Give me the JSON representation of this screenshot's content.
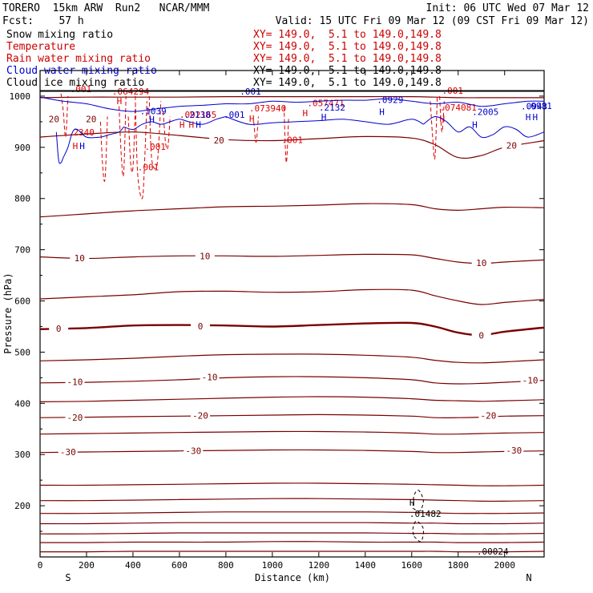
{
  "header": {
    "line1_left": "TORERO  15km ARW  Run2   NCAR/MMM",
    "line1_right": "Init: 06 UTC Wed 07 Mar 12",
    "line2_left": "Fcst:    57 h",
    "line2_right": "Valid: 15 UTC Fri 09 Mar 12 (09 CST Fri 09 Mar 12)"
  },
  "legend": [
    {
      "label": "Snow mixing ratio",
      "xy": "XY= 149.0,  5.1 to 149.0,149.8",
      "color": "#000000"
    },
    {
      "label": "Temperature",
      "xy": "XY= 149.0,  5.1 to 149.0,149.8",
      "color": "#cc0000"
    },
    {
      "label": "Rain water mixing ratio",
      "xy": "XY= 149.0,  5.1 to 149.0,149.8",
      "color": "#cc0000"
    },
    {
      "label": "Cloud water mixing ratio",
      "xy": "XY= 149.0,  5.1 to 149.0,149.8",
      "color": "#0000cc"
    },
    {
      "label": "Cloud ice mixing ratio",
      "xy": "XY= 149.0,  5.1 to 149.0,149.8",
      "color": "#000000"
    }
  ],
  "colors": {
    "temperature": "#7a0000",
    "rain": "#dd0000",
    "cloud_water": "#0000cc",
    "ice": "#000000",
    "axis": "#000000"
  },
  "chart_data": {
    "type": "line",
    "xlabel": "Distance (km)",
    "ylabel": "Pressure (hPa)",
    "xlim": [
      0,
      2170
    ],
    "ylim": [
      1050,
      100
    ],
    "x_ticks": [
      0,
      200,
      400,
      600,
      800,
      1000,
      1200,
      1400,
      1600,
      1800,
      2000
    ],
    "y_ticks": [
      200,
      300,
      400,
      500,
      600,
      700,
      800,
      900,
      1000
    ],
    "x_end_labels": {
      "left": "S",
      "right": "N"
    },
    "isotherm_x": [
      0,
      200,
      400,
      600,
      800,
      1000,
      1200,
      1400,
      1600,
      1700,
      1800,
      1900,
      2000,
      2170
    ],
    "isotherms": [
      {
        "label": "",
        "p": [
          110,
          110,
          111,
          111,
          111,
          111,
          111,
          111,
          111,
          111,
          110,
          110,
          110,
          111
        ]
      },
      {
        "label": "",
        "p": [
          128,
          128,
          129,
          129,
          129,
          130,
          130,
          129,
          129,
          129,
          128,
          128,
          128,
          129
        ]
      },
      {
        "label": "",
        "p": [
          145,
          145,
          146,
          147,
          147,
          147,
          147,
          147,
          146,
          146,
          145,
          145,
          145,
          146
        ]
      },
      {
        "label": "",
        "p": [
          165,
          165,
          166,
          167,
          167,
          167,
          167,
          167,
          166,
          166,
          165,
          165,
          165,
          166
        ]
      },
      {
        "label": "",
        "p": [
          185,
          185,
          186,
          187,
          188,
          188,
          188,
          188,
          187,
          186,
          185,
          185,
          185,
          186
        ]
      },
      {
        "label": "",
        "p": [
          210,
          210,
          211,
          212,
          213,
          214,
          214,
          213,
          212,
          211,
          210,
          209,
          209,
          210
        ]
      },
      {
        "label": "",
        "p": [
          240,
          240,
          241,
          242,
          243,
          244,
          244,
          243,
          242,
          241,
          240,
          239,
          239,
          240
        ]
      },
      {
        "label": "-30",
        "p": [
          304,
          305,
          306,
          307,
          308,
          309,
          309,
          308,
          306,
          304,
          304,
          305,
          306,
          307
        ]
      },
      {
        "label": "",
        "p": [
          340,
          341,
          342,
          343,
          344,
          345,
          345,
          344,
          342,
          340,
          340,
          341,
          342,
          343
        ]
      },
      {
        "label": "-20",
        "p": [
          372,
          373,
          374,
          375,
          376,
          377,
          378,
          377,
          375,
          372,
          372,
          373,
          375,
          376
        ]
      },
      {
        "label": "",
        "p": [
          403,
          404,
          406,
          408,
          410,
          412,
          413,
          412,
          409,
          406,
          405,
          404,
          405,
          407
        ]
      },
      {
        "label": "-10",
        "p": [
          440,
          441,
          443,
          446,
          450,
          452,
          452,
          450,
          446,
          440,
          438,
          439,
          441,
          445
        ]
      },
      {
        "label": "",
        "p": [
          483,
          485,
          488,
          492,
          495,
          496,
          496,
          494,
          490,
          484,
          480,
          479,
          481,
          485
        ]
      },
      {
        "label": "0",
        "p": [
          545,
          547,
          552,
          553,
          552,
          550,
          553,
          556,
          557,
          550,
          538,
          533,
          540,
          548
        ]
      },
      {
        "label": "",
        "p": [
          604,
          608,
          612,
          618,
          619,
          617,
          618,
          622,
          621,
          610,
          600,
          593,
          597,
          603
        ]
      },
      {
        "label": "10",
        "p": [
          686,
          683,
          686,
          688,
          688,
          687,
          689,
          691,
          690,
          683,
          676,
          673,
          676,
          680
        ]
      },
      {
        "label": "",
        "p": [
          764,
          770,
          776,
          780,
          784,
          785,
          787,
          790,
          788,
          780,
          777,
          780,
          783,
          782
        ]
      },
      {
        "label": "20",
        "p": [
          920,
          926,
          930,
          923,
          915,
          913,
          917,
          921,
          918,
          905,
          880,
          884,
          900,
          913
        ]
      },
      {
        "label": "",
        "p": [
          997,
          998,
          998,
          998,
          999,
          999,
          999,
          999,
          999,
          998,
          997,
          997,
          997,
          997
        ]
      }
    ],
    "isotherm_labels": [
      {
        "text": "-30",
        "x": 120,
        "p": 305
      },
      {
        "text": "-30",
        "x": 660,
        "p": 307
      },
      {
        "text": "-30",
        "x": 2040,
        "p": 308
      },
      {
        "text": "-20",
        "x": 150,
        "p": 372
      },
      {
        "text": "-20",
        "x": 690,
        "p": 376
      },
      {
        "text": "-20",
        "x": 1930,
        "p": 376
      },
      {
        "text": "-10",
        "x": 150,
        "p": 442
      },
      {
        "text": "-10",
        "x": 730,
        "p": 451
      },
      {
        "text": "-10",
        "x": 2110,
        "p": 445
      },
      {
        "text": "0",
        "x": 80,
        "p": 546
      },
      {
        "text": "0",
        "x": 690,
        "p": 551
      },
      {
        "text": "0",
        "x": 1900,
        "p": 533
      },
      {
        "text": "10",
        "x": 170,
        "p": 684
      },
      {
        "text": "10",
        "x": 710,
        "p": 688
      },
      {
        "text": "10",
        "x": 1900,
        "p": 674
      },
      {
        "text": "20",
        "x": 770,
        "p": 914
      },
      {
        "text": "20",
        "x": 2030,
        "p": 904
      },
      {
        "text": "20",
        "x": 60,
        "p": 955
      },
      {
        "text": "20",
        "x": 220,
        "p": 955
      }
    ],
    "ice_contour": [
      {
        "x": 1610,
        "p": 140
      },
      {
        "x": 1640,
        "p": 130
      },
      {
        "x": 1650,
        "p": 155
      },
      {
        "x": 1620,
        "p": 170
      },
      {
        "x": 1605,
        "p": 155
      }
    ],
    "ice_contour_lower": [
      {
        "x": 1605,
        "p": 195
      },
      {
        "x": 1635,
        "p": 190
      },
      {
        "x": 1650,
        "p": 210
      },
      {
        "x": 1630,
        "p": 230
      },
      {
        "x": 1610,
        "p": 220
      }
    ],
    "ice_max": {
      "mark": "H",
      "value": ".01482",
      "x": 1590,
      "p": 188
    },
    "ice_value_top": {
      "value": ".00024",
      "x": 1880,
      "p": 105
    },
    "rain_lines": [
      {
        "x": [
          90,
          100,
          110,
          120
        ],
        "p": [
          1005,
          970,
          920,
          1000
        ]
      },
      {
        "x": [
          260,
          270,
          280,
          290
        ],
        "p": [
          950,
          860,
          840,
          960
        ]
      },
      {
        "x": [
          340,
          350,
          360,
          370
        ],
        "p": [
          980,
          880,
          850,
          1000
        ]
      },
      {
        "x": [
          380,
          390,
          400,
          410
        ],
        "p": [
          960,
          870,
          860,
          980
        ]
      },
      {
        "x": [
          410,
          420,
          440,
          450,
          460
        ],
        "p": [
          1000,
          850,
          800,
          870,
          990
        ]
      },
      {
        "x": [
          470,
          480,
          500,
          510,
          520
        ],
        "p": [
          1000,
          880,
          860,
          900,
          990
        ]
      },
      {
        "x": [
          530,
          540,
          550,
          560
        ],
        "p": [
          970,
          910,
          900,
          960
        ]
      },
      {
        "x": [
          920,
          930,
          940
        ],
        "p": [
          950,
          910,
          960
        ]
      },
      {
        "x": [
          1050,
          1060,
          1070
        ],
        "p": [
          980,
          870,
          960
        ]
      },
      {
        "x": [
          1680,
          1690,
          1700,
          1710
        ],
        "p": [
          990,
          920,
          880,
          1000
        ]
      },
      {
        "x": [
          1720,
          1730,
          1740
        ],
        "p": [
          1000,
          930,
          990
        ]
      }
    ],
    "rain_labels": [
      {
        "text": ".001",
        "x": 420,
        "p": 855
      },
      {
        "text": ".001",
        "x": 450,
        "p": 895
      },
      {
        "text": ".001",
        "x": 1040,
        "p": 908
      },
      {
        "text": ".001",
        "x": 130,
        "p": 1008
      },
      {
        "text": ".001",
        "x": 1730,
        "p": 1005
      },
      {
        "text": ".2340",
        "x": 120,
        "p": 923
      },
      {
        "text": ".092165",
        "x": 600,
        "p": 958
      },
      {
        "text": ".073940",
        "x": 900,
        "p": 970
      },
      {
        "text": ".057471",
        "x": 1150,
        "p": 980
      },
      {
        "text": ".074081",
        "x": 1720,
        "p": 972
      },
      {
        "text": ".064294",
        "x": 310,
        "p": 1003
      }
    ],
    "rain_highs": [
      {
        "x": 140,
        "p": 897
      },
      {
        "x": 330,
        "p": 984
      },
      {
        "x": 600,
        "p": 938
      },
      {
        "x": 640,
        "p": 938
      },
      {
        "x": 900,
        "p": 950
      },
      {
        "x": 1130,
        "p": 961
      },
      {
        "x": 1720,
        "p": 950
      }
    ],
    "cloud_lines": [
      {
        "x": [
          70,
          80,
          90,
          100,
          120,
          140,
          160,
          200,
          260,
          300,
          340,
          360
        ],
        "p": [
          930,
          875,
          870,
          880,
          900,
          930,
          935,
          920,
          920,
          925,
          930,
          940
        ]
      },
      {
        "x": [
          360,
          400,
          440,
          480,
          520,
          560,
          600,
          640,
          700,
          760,
          800
        ],
        "p": [
          940,
          935,
          945,
          950,
          945,
          950,
          955,
          950,
          945,
          955,
          960
        ]
      },
      {
        "x": [
          800,
          900,
          1000,
          1100,
          1200,
          1300,
          1400,
          1500,
          1600,
          1650
        ],
        "p": [
          960,
          945,
          948,
          950,
          952,
          955,
          950,
          945,
          955,
          945
        ]
      },
      {
        "x": [
          1650,
          1700,
          1750,
          1800,
          1850,
          1900,
          1950,
          2000,
          2050,
          2100,
          2170
        ],
        "p": [
          945,
          960,
          950,
          930,
          940,
          920,
          925,
          940,
          935,
          920,
          930
        ]
      },
      {
        "x": [
          0,
          100,
          200,
          300,
          400,
          500,
          600,
          700,
          800,
          900,
          1000,
          1100,
          1200,
          1300,
          1400,
          1500,
          1600,
          1700,
          1800,
          1900,
          2000,
          2100,
          2170
        ],
        "p": [
          998,
          990,
          985,
          975,
          970,
          975,
          980,
          982,
          985,
          985,
          990,
          988,
          990,
          992,
          992,
          995,
          990,
          985,
          988,
          980,
          985,
          990,
          990
        ]
      }
    ],
    "cloud_labels": [
      {
        "text": ".1039",
        "x": 430,
        "p": 965
      },
      {
        "text": ".001",
        "x": 790,
        "p": 958
      },
      {
        "text": ".2132",
        "x": 1200,
        "p": 972
      },
      {
        "text": ".0929",
        "x": 1450,
        "p": 987
      },
      {
        "text": ".2005",
        "x": 1860,
        "p": 963
      },
      {
        "text": ".0943",
        "x": 2070,
        "p": 974
      },
      {
        "text": ".0981",
        "x": 2090,
        "p": 975
      },
      {
        "text": ".001",
        "x": 860,
        "p": 1003
      },
      {
        "text": ".2138",
        "x": 620,
        "p": 958
      }
    ],
    "cloud_highs": [
      {
        "x": 170,
        "p": 897
      },
      {
        "x": 470,
        "p": 948
      },
      {
        "x": 670,
        "p": 938
      },
      {
        "x": 1210,
        "p": 953
      },
      {
        "x": 1460,
        "p": 963
      },
      {
        "x": 1860,
        "p": 938
      },
      {
        "x": 2090,
        "p": 953
      },
      {
        "x": 2120,
        "p": 953
      }
    ]
  }
}
